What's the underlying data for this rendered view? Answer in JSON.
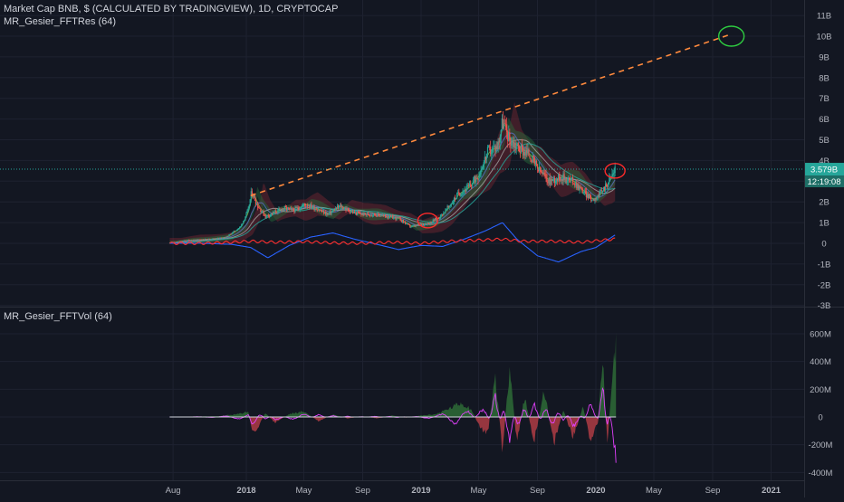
{
  "header": {
    "title": "Market Cap BNB, $ (CALCULATED BY TRADINGVIEW), 1D, CRYPTOCAP",
    "indicator1": "MR_Gesier_FFTRes (64)",
    "indicator2": "MR_Gesier_FFTVol (64)"
  },
  "colors": {
    "background": "#131722",
    "grid": "#1e2230",
    "axis_text": "#b2b5be",
    "up": "#26a69a",
    "down": "#ef5350",
    "trendline": "#ff8a3d",
    "current_label": "#26a69a",
    "annotation_green": "#2ecc40",
    "annotation_red": "#ff2a2a",
    "blue_line": "#2962ff",
    "osc_red": "#ff3030",
    "osc_green": "#2e7d32",
    "vol_green": "#2e6b36",
    "vol_red": "#c4424a",
    "vol_magenta": "#e040fb"
  },
  "current_price": {
    "value": "3.579B",
    "countdown": "12:19:08"
  },
  "chart_data": [
    {
      "type": "line",
      "name": "price_pane",
      "y_unit": "USD market cap (B)",
      "ylim": [
        -3,
        11
      ],
      "y_ticks": [
        "11B",
        "10B",
        "9B",
        "8B",
        "7B",
        "6B",
        "5B",
        "4B",
        "3B",
        "2B",
        "1B",
        "0",
        "-1B",
        "-2B",
        "-3B"
      ],
      "y_tick_values": [
        11,
        10,
        9,
        8,
        7,
        6,
        5,
        4,
        3,
        2,
        1,
        0,
        -1,
        -2,
        -3
      ],
      "xlim": [
        "2017-07-01",
        "2021-03-15"
      ],
      "x_ticks": [
        "Aug",
        "2018",
        "May",
        "Sep",
        "2019",
        "May",
        "Sep",
        "2020",
        "May",
        "Sep",
        "2021"
      ],
      "x_tick_dates": [
        "2017-08-01",
        "2018-01-01",
        "2018-05-01",
        "2018-09-01",
        "2019-01-01",
        "2019-05-01",
        "2019-09-01",
        "2020-01-01",
        "2020-05-01",
        "2020-09-01",
        "2021-01-01"
      ],
      "grid": true,
      "price_series": {
        "x": [
          "2017-07-25",
          "2017-09-01",
          "2017-10-15",
          "2017-11-20",
          "2017-12-20",
          "2018-01-05",
          "2018-01-12",
          "2018-01-25",
          "2018-02-10",
          "2018-03-01",
          "2018-03-20",
          "2018-04-10",
          "2018-05-05",
          "2018-05-25",
          "2018-06-20",
          "2018-07-15",
          "2018-08-10",
          "2018-09-01",
          "2018-09-25",
          "2018-10-20",
          "2018-11-15",
          "2018-12-10",
          "2019-01-01",
          "2019-01-20",
          "2019-02-10",
          "2019-03-01",
          "2019-03-20",
          "2019-04-10",
          "2019-05-01",
          "2019-05-20",
          "2019-06-10",
          "2019-06-20",
          "2019-07-05",
          "2019-07-25",
          "2019-08-15",
          "2019-09-01",
          "2019-09-25",
          "2019-10-20",
          "2019-11-15",
          "2019-12-10",
          "2019-12-25",
          "2020-01-10",
          "2020-01-25",
          "2020-02-10"
        ],
        "values": [
          0.01,
          0.15,
          0.2,
          0.3,
          0.8,
          1.6,
          2.5,
          1.8,
          1.3,
          1.5,
          1.7,
          1.6,
          1.9,
          1.7,
          1.4,
          1.8,
          1.5,
          1.4,
          1.4,
          1.3,
          1.2,
          0.8,
          0.9,
          1.0,
          1.3,
          1.8,
          2.4,
          2.7,
          3.3,
          4.4,
          4.7,
          5.9,
          5.0,
          4.6,
          4.3,
          3.6,
          3.0,
          3.2,
          3.0,
          2.4,
          2.1,
          2.4,
          2.9,
          3.58
        ]
      },
      "trendline": {
        "x": [
          "2018-01-10",
          "2020-10-10"
        ],
        "values": [
          2.3,
          10.1
        ]
      },
      "current_value": 3.579,
      "annotations": [
        {
          "shape": "circle",
          "color": "green",
          "x": "2020-10-10",
          "value": 10.0
        },
        {
          "shape": "circle",
          "color": "red",
          "x": "2020-02-10",
          "value": 3.5
        },
        {
          "shape": "circle",
          "color": "red",
          "x": "2019-01-15",
          "value": 1.1
        }
      ],
      "oscillator_blue": {
        "x": [
          "2017-07-25",
          "2017-10-01",
          "2017-12-01",
          "2018-01-10",
          "2018-02-15",
          "2018-04-01",
          "2018-05-15",
          "2018-07-01",
          "2018-08-15",
          "2018-10-01",
          "2018-11-15",
          "2019-01-01",
          "2019-02-15",
          "2019-04-01",
          "2019-05-15",
          "2019-06-20",
          "2019-07-20",
          "2019-09-01",
          "2019-10-15",
          "2019-12-01",
          "2020-01-01",
          "2020-02-10"
        ],
        "values": [
          0,
          0,
          -0.05,
          -0.2,
          -0.7,
          -0.1,
          0.3,
          0.5,
          0.2,
          -0.05,
          -0.3,
          -0.1,
          -0.15,
          0.2,
          0.6,
          1.0,
          0.2,
          -0.6,
          -0.9,
          -0.4,
          -0.2,
          0.4
        ]
      },
      "oscillator_red": {
        "x": [
          "2017-07-25",
          "2017-10-01",
          "2017-12-01",
          "2018-01-10",
          "2018-03-01",
          "2018-05-01",
          "2018-07-01",
          "2018-09-01",
          "2018-11-01",
          "2019-01-01",
          "2019-03-01",
          "2019-05-01",
          "2019-06-20",
          "2019-08-01",
          "2019-10-01",
          "2019-12-01",
          "2020-01-15",
          "2020-02-10"
        ],
        "values": [
          0,
          0,
          0.05,
          0.1,
          0.05,
          0.08,
          0.02,
          0.0,
          0.05,
          0.0,
          0.1,
          0.15,
          0.2,
          0.1,
          0.1,
          0.05,
          0.15,
          0.2
        ]
      }
    },
    {
      "type": "area",
      "name": "volume_pane",
      "y_unit": "USD",
      "ylim": [
        -450,
        650
      ],
      "y_ticks": [
        "600M",
        "400M",
        "200M",
        "0",
        "-200M",
        "-400M"
      ],
      "y_tick_values": [
        600,
        400,
        200,
        0,
        -200,
        -400
      ],
      "grid": true,
      "series": [
        {
          "x": [
            "2017-07-25",
            "2017-11-01",
            "2017-12-15",
            "2018-01-05",
            "2018-01-15",
            "2018-01-25",
            "2018-02-10",
            "2018-03-01",
            "2018-04-01",
            "2018-05-01",
            "2018-06-01",
            "2018-07-01",
            "2018-08-01",
            "2018-09-01",
            "2018-10-01",
            "2018-11-01",
            "2018-12-01",
            "2019-01-01",
            "2019-02-01",
            "2019-03-01",
            "2019-03-25",
            "2019-04-15",
            "2019-05-05",
            "2019-05-20",
            "2019-06-05",
            "2019-06-20",
            "2019-07-05",
            "2019-07-20",
            "2019-08-05",
            "2019-08-25",
            "2019-09-15",
            "2019-10-05",
            "2019-10-25",
            "2019-11-15",
            "2019-12-05",
            "2019-12-20",
            "2020-01-05",
            "2020-01-15",
            "2020-01-25",
            "2020-02-05",
            "2020-02-12"
          ],
          "values": [
            0,
            5,
            20,
            40,
            -120,
            -80,
            30,
            -40,
            20,
            40,
            -30,
            20,
            -10,
            5,
            -10,
            10,
            -5,
            10,
            20,
            60,
            100,
            60,
            -80,
            -120,
            300,
            -250,
            380,
            -200,
            150,
            -180,
            200,
            -200,
            50,
            -150,
            80,
            -160,
            -50,
            420,
            -200,
            350,
            500
          ]
        }
      ]
    }
  ]
}
